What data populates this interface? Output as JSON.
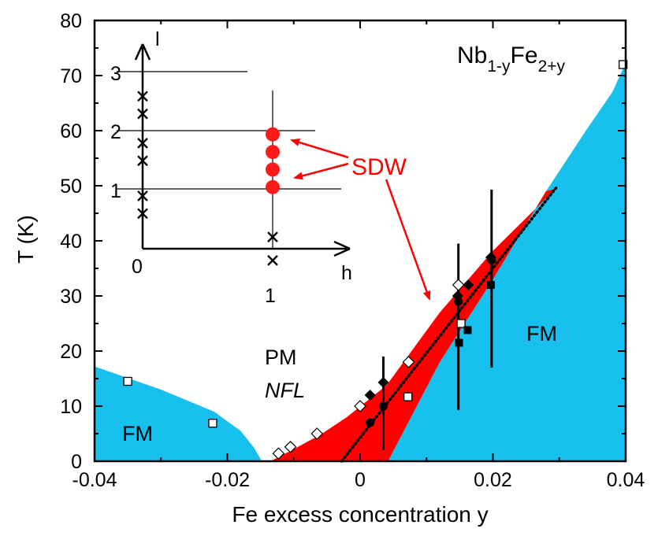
{
  "chart_data": {
    "type": "scatter",
    "compound": {
      "base1": "Nb",
      "sub1": "1-y",
      "base2": "Fe",
      "sub2": "2+y"
    },
    "xlabel": "Fe excess concentration y",
    "ylabel": "T (K)",
    "xlim": [
      -0.04,
      0.04
    ],
    "ylim": [
      0,
      80
    ],
    "xticks": [
      -0.04,
      -0.02,
      0,
      0.02,
      0.04
    ],
    "xtick_labels": [
      "-0.04",
      "-0.02",
      "0",
      "0.02",
      "0.04"
    ],
    "yticks": [
      0,
      10,
      20,
      30,
      40,
      50,
      60,
      70,
      80
    ],
    "ytick_labels": [
      "0",
      "10",
      "20",
      "30",
      "40",
      "50",
      "60",
      "70",
      "80"
    ],
    "region_labels": {
      "fm_left": "FM",
      "fm_right": "FM",
      "pm": "PM",
      "nfl": "NFL"
    },
    "colors": {
      "fm": "#18c0ee",
      "sdw": "#ff0000",
      "inset_dot": "#ff1a1a",
      "annotation": "#ff0000",
      "ink": "#000000"
    },
    "regions": {
      "fm_left": [
        [
          -0.04,
          0
        ],
        [
          -0.04,
          17.2
        ],
        [
          -0.03,
          13
        ],
        [
          -0.022,
          9
        ],
        [
          -0.018,
          5.5
        ],
        [
          -0.016,
          2.5
        ],
        [
          -0.0148,
          0
        ]
      ],
      "fm_right": [
        [
          0.0042,
          0
        ],
        [
          0.012,
          18
        ],
        [
          0.02,
          33
        ],
        [
          0.028,
          49
        ],
        [
          0.034,
          60
        ],
        [
          0.038,
          67
        ],
        [
          0.0395,
          71
        ],
        [
          0.04,
          72.5
        ],
        [
          0.04,
          0
        ]
      ],
      "sdw": [
        [
          -0.0135,
          0
        ],
        [
          -0.01,
          2.2
        ],
        [
          -0.006,
          4.8
        ],
        [
          -0.002,
          8
        ],
        [
          0.004,
          13.8
        ],
        [
          0.012,
          27
        ],
        [
          0.02,
          38.2
        ],
        [
          0.0295,
          49.5
        ],
        [
          0.028,
          49
        ],
        [
          0.02,
          33
        ],
        [
          0.012,
          18
        ],
        [
          0.0042,
          0
        ]
      ]
    },
    "series": [
      {
        "name": "open squares",
        "marker": "square-open",
        "x": [
          -0.035,
          -0.0222,
          0.0072,
          0.0152,
          0.0396
        ],
        "y": [
          14.5,
          6.9,
          11.7,
          25.0,
          72.0
        ]
      },
      {
        "name": "open diamonds",
        "marker": "diamond-open",
        "x": [
          -0.0123,
          -0.0105,
          -0.0065,
          0.0,
          0.0073,
          0.0148
        ],
        "y": [
          1.4,
          2.6,
          5.0,
          10.0,
          18.0,
          32.0
        ]
      },
      {
        "name": "filled diamonds",
        "marker": "diamond-filled",
        "x": [
          0.0015,
          0.0035,
          0.0147,
          0.0163,
          0.0197
        ],
        "y": [
          12.0,
          14.3,
          30.0,
          32.0,
          37.0
        ]
      },
      {
        "name": "filled circles",
        "marker": "circle-filled",
        "x": [
          0.0015,
          0.0035,
          0.0148,
          0.0198
        ],
        "y": [
          7.0,
          10.0,
          29.0,
          36.5
        ]
      },
      {
        "name": "filled squares",
        "marker": "square-filled",
        "x": [
          0.0149,
          0.0162,
          0.0197
        ],
        "y": [
          21.5,
          23.8,
          32.0
        ]
      }
    ],
    "error_bars": [
      {
        "x": 0.0035,
        "y_low": 2.0,
        "y_high": 19.0
      },
      {
        "x": 0.0148,
        "y_low": 9.3,
        "y_high": 39.5
      },
      {
        "x": 0.0198,
        "y_low": 17.0,
        "y_high": 49.3
      }
    ],
    "dotted_line": [
      [
        -0.0028,
        0
      ],
      [
        0.0295,
        49.6
      ]
    ],
    "annotation": {
      "text": "SDW"
    },
    "inset": {
      "xlabel": "h",
      "ylabel": "l",
      "origin_label": "0",
      "h_tick_label": "1",
      "l_tick_labels": [
        "1",
        "2",
        "3"
      ],
      "crosses_h0": [
        0.6,
        0.9,
        1.5,
        1.8,
        2.3,
        2.6
      ],
      "crosses_h1": [
        -0.2,
        0.2
      ],
      "sdw_dots_h1": [
        1.05,
        1.35,
        1.65,
        1.95
      ]
    }
  }
}
